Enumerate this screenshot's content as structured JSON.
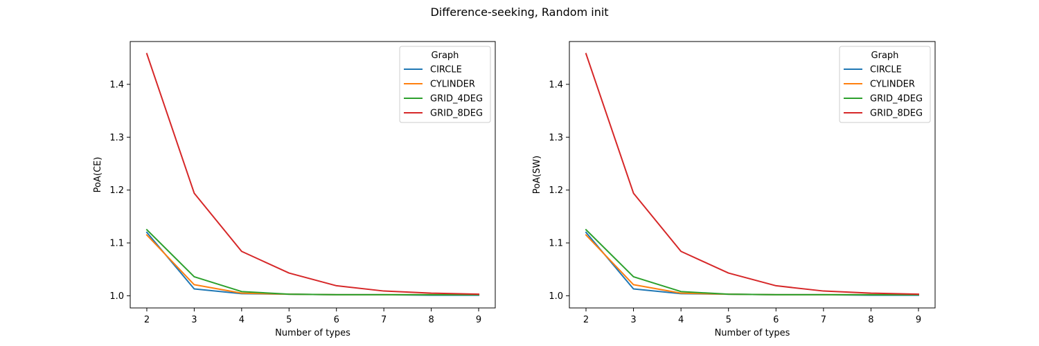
{
  "figure": {
    "title": "Difference-seeking, Random init"
  },
  "chart_data": [
    {
      "type": "line",
      "title": "",
      "xlabel": "Number of types",
      "ylabel": "PoA(CE)",
      "x": [
        2,
        3,
        4,
        5,
        6,
        7,
        8,
        9
      ],
      "xticks": [
        "2",
        "3",
        "4",
        "5",
        "6",
        "7",
        "8",
        "9"
      ],
      "yticks": [
        "1.0",
        "1.1",
        "1.2",
        "1.3",
        "1.4"
      ],
      "xlim": [
        1.65,
        9.35
      ],
      "ylim": [
        0.977,
        1.481
      ],
      "grid": false,
      "legend": {
        "title": "Graph",
        "placement": "top-right"
      },
      "series": [
        {
          "name": "CIRCLE",
          "color": "#1f77b4",
          "values": [
            1.12,
            1.013,
            1.004,
            1.003,
            1.002,
            1.002,
            1.001,
            1.001
          ]
        },
        {
          "name": "CYLINDER",
          "color": "#ff7f0e",
          "values": [
            1.115,
            1.021,
            1.005,
            1.003,
            1.002,
            1.002,
            1.002,
            1.002
          ]
        },
        {
          "name": "GRID_4DEG",
          "color": "#2ca02c",
          "values": [
            1.125,
            1.036,
            1.008,
            1.003,
            1.002,
            1.002,
            1.002,
            1.002
          ]
        },
        {
          "name": "GRID_8DEG",
          "color": "#d62728",
          "values": [
            1.458,
            1.194,
            1.084,
            1.043,
            1.019,
            1.009,
            1.005,
            1.003
          ]
        }
      ]
    },
    {
      "type": "line",
      "title": "",
      "xlabel": "Number of types",
      "ylabel": "PoA(SW)",
      "x": [
        2,
        3,
        4,
        5,
        6,
        7,
        8,
        9
      ],
      "xticks": [
        "2",
        "3",
        "4",
        "5",
        "6",
        "7",
        "8",
        "9"
      ],
      "yticks": [
        "1.0",
        "1.1",
        "1.2",
        "1.3",
        "1.4"
      ],
      "xlim": [
        1.65,
        9.35
      ],
      "ylim": [
        0.977,
        1.481
      ],
      "grid": false,
      "legend": {
        "title": "Graph",
        "placement": "top-right"
      },
      "series": [
        {
          "name": "CIRCLE",
          "color": "#1f77b4",
          "values": [
            1.12,
            1.013,
            1.004,
            1.003,
            1.002,
            1.002,
            1.001,
            1.001
          ]
        },
        {
          "name": "CYLINDER",
          "color": "#ff7f0e",
          "values": [
            1.115,
            1.021,
            1.005,
            1.003,
            1.002,
            1.002,
            1.002,
            1.002
          ]
        },
        {
          "name": "GRID_4DEG",
          "color": "#2ca02c",
          "values": [
            1.125,
            1.036,
            1.008,
            1.003,
            1.002,
            1.002,
            1.002,
            1.002
          ]
        },
        {
          "name": "GRID_8DEG",
          "color": "#d62728",
          "values": [
            1.458,
            1.194,
            1.084,
            1.043,
            1.019,
            1.009,
            1.005,
            1.003
          ]
        }
      ]
    }
  ]
}
